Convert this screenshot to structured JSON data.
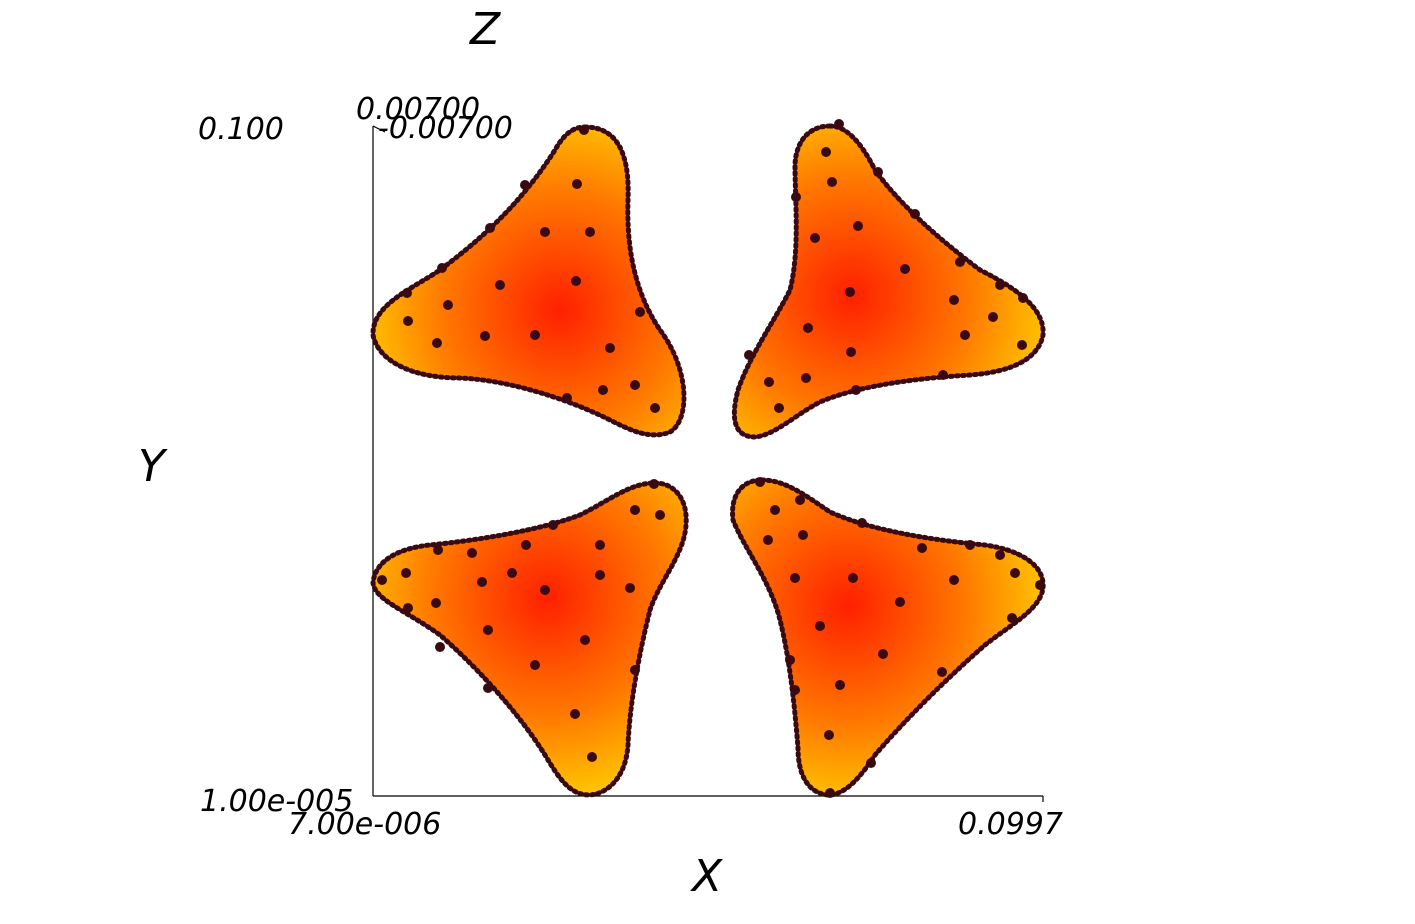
{
  "axes": {
    "x": {
      "title": "X",
      "min_label": "7.00e-006",
      "max_label": "0.0997"
    },
    "y": {
      "title": "Y",
      "min_label": "1.00e-005",
      "max_label": "0.100"
    },
    "z": {
      "title": "Z",
      "min_label": "-0.00700",
      "max_label": "0.00700"
    }
  },
  "colors": {
    "axis_line": "#000000",
    "colormap_low": "#f5ff00",
    "colormap_mid": "#ffa000",
    "colormap_high": "#ff2000",
    "node_marker": "#3a0a12",
    "background": "#ffffff"
  }
}
